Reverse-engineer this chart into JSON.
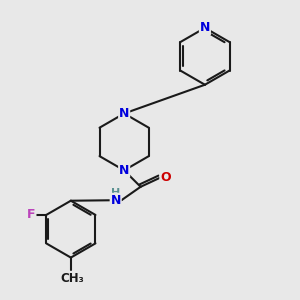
{
  "bg_color": "#e8e8e8",
  "bond_color": "#1a1a1a",
  "N_color": "#0000dd",
  "O_color": "#cc0000",
  "F_color": "#bb44bb",
  "H_color": "#5a9090",
  "line_width": 1.5,
  "font_size": 9.0,
  "dpi": 100,
  "fig_width": 3.0,
  "fig_height": 3.0,
  "xlim": [
    0.05,
    0.95
  ],
  "ylim": [
    0.05,
    0.97
  ]
}
